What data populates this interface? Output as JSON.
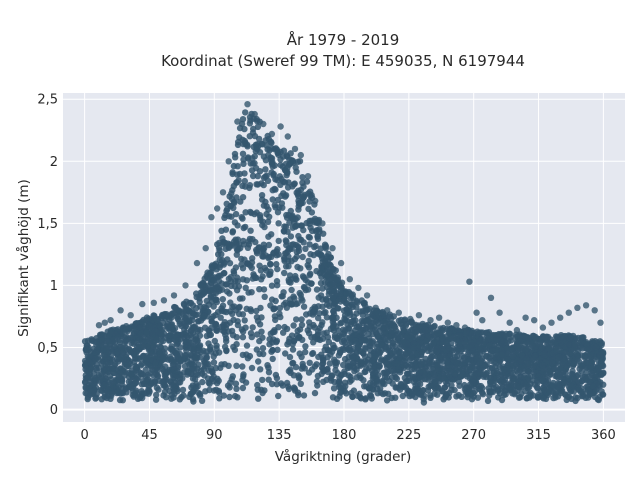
{
  "chart_data": {
    "type": "scatter",
    "title_line1": "År 1979 - 2019",
    "title_line2": "Koordinat (Sweref 99 TM): E 459035, N 6197944",
    "xlabel": "Vågriktning (grader)",
    "ylabel": "Signifikant våghöjd (m)",
    "xlim": [
      -15,
      375
    ],
    "ylim": [
      -0.1,
      2.55
    ],
    "x_ticks": [
      0,
      45,
      90,
      135,
      180,
      225,
      270,
      315,
      360
    ],
    "x_tick_labels": [
      "0",
      "45",
      "90",
      "135",
      "180",
      "225",
      "270",
      "315",
      "360"
    ],
    "y_ticks": [
      0,
      0.5,
      1,
      1.5,
      2,
      2.5
    ],
    "y_tick_labels": [
      "0",
      "0,5",
      "1",
      "1,5",
      "2",
      "2,5"
    ],
    "grid": true,
    "legend": "none",
    "marker_color": "#34566e",
    "plot_background": "#e5e8f0",
    "envelope": {
      "description_values": "upper boundary of the dense point cloud (direction in degrees, wave height in m)",
      "x": [
        0,
        10,
        20,
        30,
        45,
        60,
        75,
        85,
        95,
        102,
        108,
        112,
        118,
        125,
        132,
        140,
        148,
        155,
        162,
        170,
        180,
        190,
        200,
        215,
        230,
        245,
        260,
        275,
        290,
        305,
        320,
        335,
        350,
        360
      ],
      "y": [
        0.55,
        0.6,
        0.65,
        0.68,
        0.75,
        0.82,
        0.9,
        1.1,
        1.45,
        1.9,
        2.3,
        2.45,
        2.4,
        2.25,
        2.15,
        2.1,
        2.05,
        1.85,
        1.55,
        1.25,
        1.0,
        0.9,
        0.82,
        0.75,
        0.7,
        0.67,
        0.65,
        0.63,
        0.62,
        0.6,
        0.6,
        0.6,
        0.58,
        0.55
      ],
      "lower_y": 0.05
    },
    "outliers": {
      "x": [
        10,
        14,
        18,
        25,
        32,
        40,
        48,
        55,
        62,
        70,
        78,
        84,
        88,
        92,
        96,
        100,
        106,
        113,
        118,
        124,
        130,
        136,
        141,
        146,
        150,
        155,
        160,
        165,
        172,
        178,
        184,
        190,
        196,
        202,
        210,
        218,
        226,
        232,
        240,
        246,
        252,
        258,
        264,
        267,
        272,
        276,
        282,
        288,
        295,
        300,
        306,
        312,
        318,
        324,
        330,
        336,
        342,
        348,
        354,
        358
      ],
      "y": [
        0.68,
        0.7,
        0.72,
        0.8,
        0.76,
        0.85,
        0.86,
        0.88,
        0.92,
        1.0,
        1.18,
        1.3,
        1.55,
        1.62,
        1.75,
        2.0,
        2.32,
        2.46,
        2.38,
        2.3,
        2.22,
        2.28,
        2.2,
        2.1,
        2.05,
        1.88,
        1.68,
        1.5,
        1.3,
        1.18,
        1.05,
        0.98,
        0.92,
        0.82,
        0.8,
        0.78,
        0.73,
        0.76,
        0.72,
        0.74,
        0.7,
        0.68,
        0.66,
        1.03,
        0.78,
        0.72,
        0.9,
        0.78,
        0.7,
        0.64,
        0.74,
        0.72,
        0.66,
        0.7,
        0.74,
        0.78,
        0.82,
        0.84,
        0.8,
        0.7
      ]
    }
  }
}
